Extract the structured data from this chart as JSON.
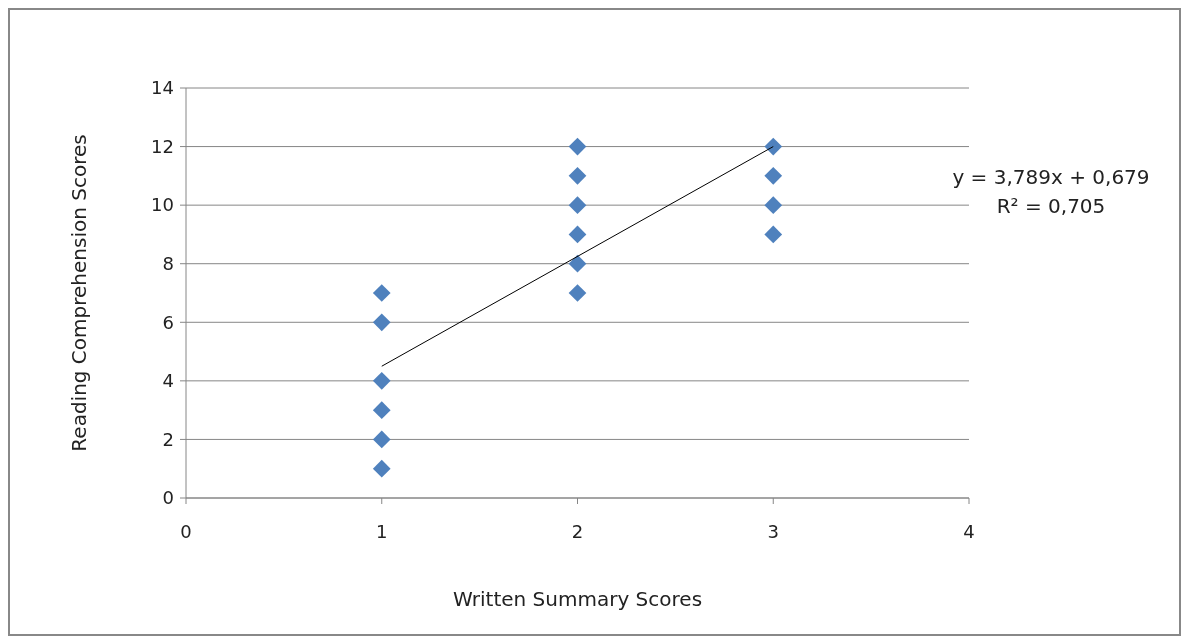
{
  "chart_data": {
    "type": "scatter",
    "xlabel": "Written Summary Scores",
    "ylabel": "Reading Comprehension Scores",
    "xlim": [
      0,
      4
    ],
    "xticks": [
      0,
      1,
      2,
      3,
      4
    ],
    "ylim": [
      0,
      14
    ],
    "yticks": [
      0,
      2,
      4,
      6,
      8,
      10,
      12,
      14
    ],
    "grid": "y",
    "marker": "diamond",
    "series": [
      {
        "color": "#4f81bd",
        "x": [
          1,
          1,
          1,
          1,
          1,
          1,
          2,
          2,
          2,
          2,
          2,
          2,
          3,
          3,
          3,
          3
        ],
        "values": [
          1,
          2,
          3,
          4,
          6,
          7,
          7,
          8,
          9,
          10,
          11,
          12,
          9,
          10,
          11,
          12
        ]
      },
      {
        "type": "line",
        "color": "#000000",
        "x": [
          1,
          3
        ],
        "values": [
          4.5,
          12.0
        ],
        "marker": "none",
        "line_style": "solid"
      }
    ],
    "annotations": [
      "y = 3,789x + 0,679",
      "R² = 0,705"
    ]
  }
}
